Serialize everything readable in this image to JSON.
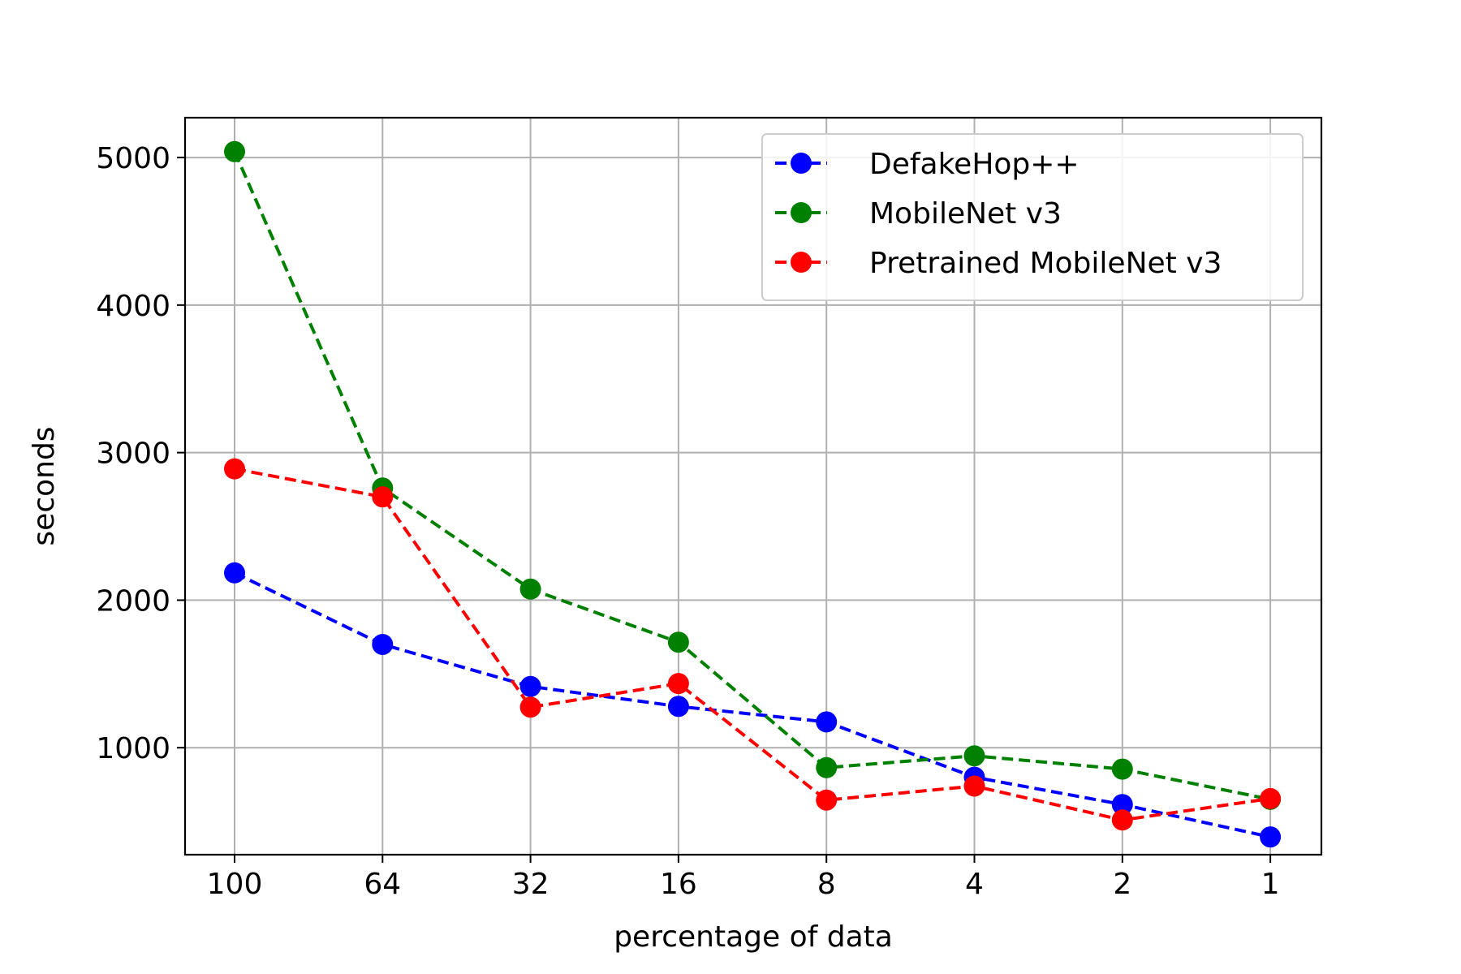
{
  "chart_data": {
    "type": "line",
    "title": "",
    "xlabel": "percentage of data",
    "ylabel": "seconds",
    "categories": [
      "100",
      "64",
      "32",
      "16",
      "8",
      "4",
      "2",
      "1"
    ],
    "ylim": [
      275,
      5270
    ],
    "yticks": [
      1000,
      2000,
      3000,
      4000,
      5000
    ],
    "grid": true,
    "legend_position": "top-right",
    "series": [
      {
        "name": "DefakeHop++",
        "color": "#0000ff",
        "linestyle": "dashed",
        "marker": "circle",
        "values": [
          2185,
          1700,
          1415,
          1280,
          1175,
          800,
          615,
          395
        ]
      },
      {
        "name": "MobileNet v3",
        "color": "#008000",
        "linestyle": "dashed",
        "marker": "circle",
        "values": [
          5040,
          2760,
          2075,
          1715,
          865,
          945,
          855,
          650
        ]
      },
      {
        "name": "Pretrained MobileNet v3",
        "color": "#ff0000",
        "linestyle": "dashed",
        "marker": "circle",
        "values": [
          2890,
          2700,
          1275,
          1435,
          645,
          740,
          510,
          655
        ]
      }
    ]
  }
}
